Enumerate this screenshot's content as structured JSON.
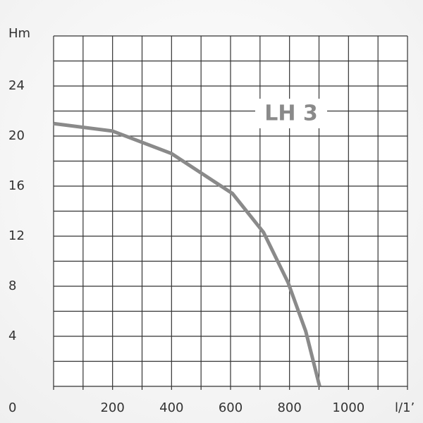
{
  "chart_data": {
    "type": "line",
    "series_label": "LH 3",
    "y_axis_label": "Hm",
    "x_axis_label": "l/1’",
    "origin_label": "0",
    "x": [
      0,
      200,
      400,
      607,
      712,
      795,
      855,
      902
    ],
    "series": [
      {
        "name": "LH 3",
        "color": "#8a8a8a",
        "values": [
          21,
          20.4,
          18.6,
          15.4,
          12.3,
          8.3,
          4.4,
          0
        ]
      }
    ],
    "xlim": [
      0,
      1200
    ],
    "ylim": [
      0,
      28
    ],
    "xticks": [
      200,
      400,
      600,
      800,
      1000
    ],
    "yticks": [
      4,
      8,
      12,
      16,
      20,
      24
    ],
    "grid_xticks": [
      0,
      100,
      200,
      300,
      400,
      500,
      600,
      700,
      800,
      900,
      1000,
      1100,
      1200
    ],
    "grid_yticks": [
      0,
      2,
      4,
      6,
      8,
      10,
      12,
      14,
      16,
      18,
      20,
      22,
      24,
      26,
      28
    ],
    "grid": true
  }
}
